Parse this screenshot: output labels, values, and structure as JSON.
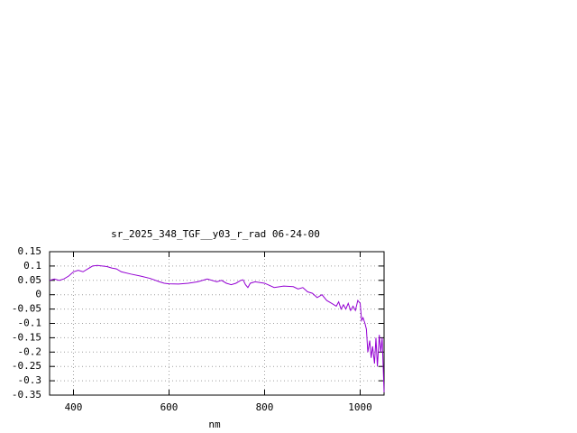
{
  "chart_data": {
    "type": "line",
    "title": "sr_2025_348_TGF__y03_r_rad 06-24-00",
    "x_label": "nm",
    "x": [
      350,
      360,
      370,
      380,
      390,
      400,
      410,
      420,
      430,
      440,
      450,
      460,
      470,
      480,
      490,
      500,
      520,
      540,
      560,
      580,
      590,
      600,
      620,
      640,
      660,
      680,
      700,
      710,
      720,
      730,
      740,
      750,
      755,
      760,
      765,
      770,
      780,
      800,
      820,
      840,
      860,
      870,
      880,
      890,
      900,
      910,
      920,
      930,
      940,
      950,
      955,
      960,
      965,
      970,
      975,
      980,
      985,
      990,
      995,
      1000,
      1003,
      1006,
      1010,
      1013,
      1016,
      1020,
      1023,
      1026,
      1030,
      1033,
      1036,
      1040,
      1043,
      1046,
      1050
    ],
    "series": [
      {
        "color": "#9400d3",
        "values": [
          0.05,
          0.055,
          0.05,
          0.055,
          0.065,
          0.08,
          0.085,
          0.08,
          0.09,
          0.1,
          0.102,
          0.1,
          0.098,
          0.093,
          0.09,
          0.08,
          0.072,
          0.065,
          0.057,
          0.045,
          0.04,
          0.038,
          0.037,
          0.04,
          0.045,
          0.055,
          0.045,
          0.05,
          0.04,
          0.035,
          0.04,
          0.05,
          0.052,
          0.035,
          0.025,
          0.04,
          0.045,
          0.04,
          0.025,
          0.03,
          0.028,
          0.02,
          0.025,
          0.01,
          0.005,
          -0.01,
          0.0,
          -0.02,
          -0.03,
          -0.04,
          -0.025,
          -0.05,
          -0.035,
          -0.05,
          -0.03,
          -0.055,
          -0.04,
          -0.055,
          -0.02,
          -0.03,
          -0.09,
          -0.08,
          -0.1,
          -0.12,
          -0.2,
          -0.16,
          -0.22,
          -0.18,
          -0.24,
          -0.15,
          -0.25,
          -0.14,
          -0.2,
          -0.15,
          -0.34
        ]
      }
    ],
    "xlim": [
      350,
      1050
    ],
    "xticks": [
      400,
      600,
      800,
      1000
    ],
    "ylim": [
      -0.35,
      0.15
    ],
    "yticks": [
      -0.35,
      -0.3,
      -0.25,
      -0.2,
      -0.15,
      -0.1,
      -0.05,
      0,
      0.05,
      0.1,
      0.15
    ],
    "grid": true
  }
}
